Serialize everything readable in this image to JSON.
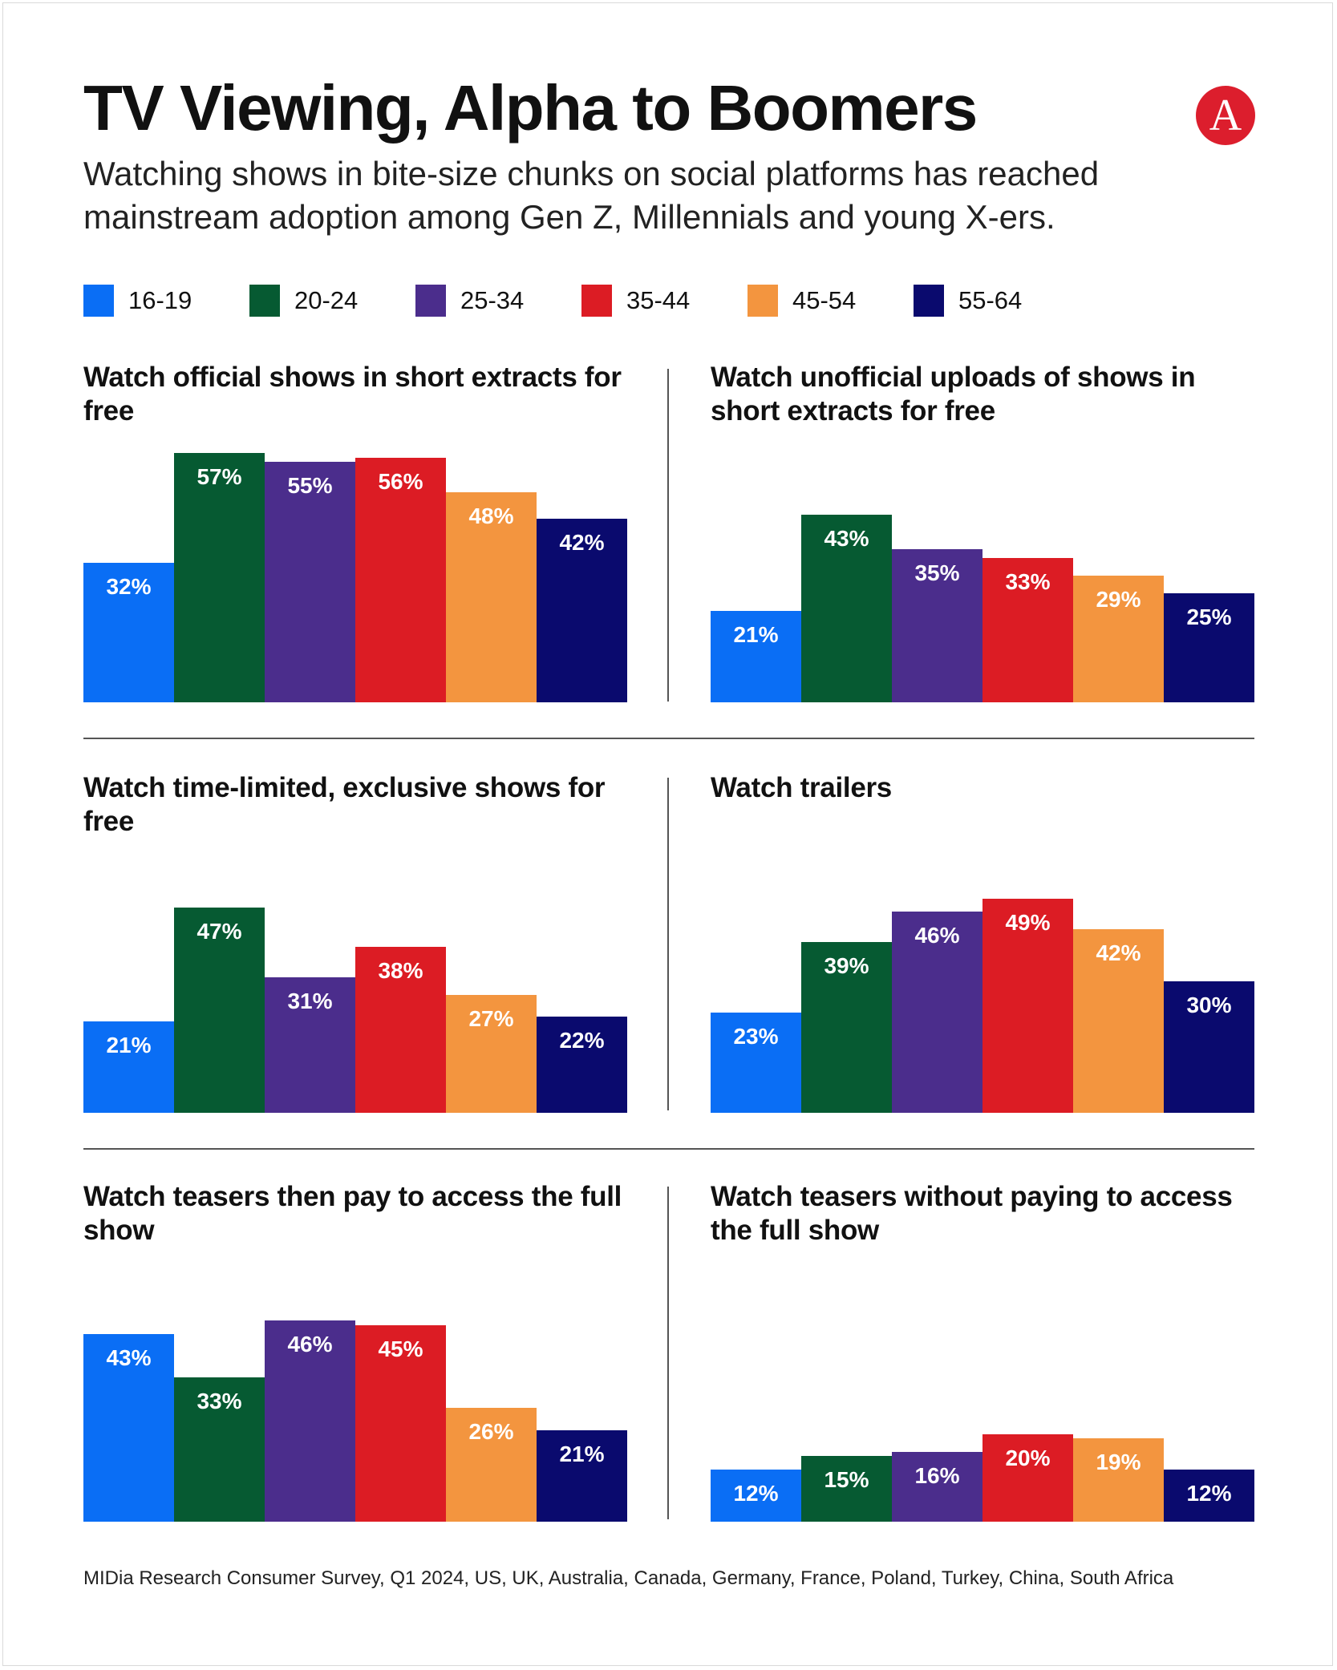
{
  "header": {
    "title": "TV Viewing, Alpha to Boomers",
    "subtitle": "Watching shows in bite-size chunks on social platforms has reached mainstream adoption among Gen Z, Millennials and young X-ers.",
    "logo_letter": "A",
    "logo_color": "#dc1e2d"
  },
  "legend": [
    {
      "label": "16-19",
      "color": "#0a6ef5"
    },
    {
      "label": "20-24",
      "color": "#065a32"
    },
    {
      "label": "25-34",
      "color": "#4b2d8c"
    },
    {
      "label": "35-44",
      "color": "#dc1c24"
    },
    {
      "label": "45-54",
      "color": "#f3953f"
    },
    {
      "label": "55-64",
      "color": "#0a0a6e"
    }
  ],
  "chart_data": [
    {
      "type": "bar",
      "title": "Watch official shows in short extracts for free",
      "categories": [
        "16-19",
        "20-24",
        "25-34",
        "35-44",
        "45-54",
        "55-64"
      ],
      "values": [
        32,
        57,
        55,
        56,
        48,
        42
      ],
      "unit": "%",
      "ylim": [
        0,
        60
      ]
    },
    {
      "type": "bar",
      "title": "Watch unofficial uploads of shows in short extracts for free",
      "categories": [
        "16-19",
        "20-24",
        "25-34",
        "35-44",
        "45-54",
        "55-64"
      ],
      "values": [
        21,
        43,
        35,
        33,
        29,
        25
      ],
      "unit": "%",
      "ylim": [
        0,
        60
      ]
    },
    {
      "type": "bar",
      "title": "Watch time-limited, exclusive shows for free",
      "categories": [
        "16-19",
        "20-24",
        "25-34",
        "35-44",
        "45-54",
        "55-64"
      ],
      "values": [
        21,
        47,
        31,
        38,
        27,
        22
      ],
      "unit": "%",
      "ylim": [
        0,
        60
      ]
    },
    {
      "type": "bar",
      "title": "Watch trailers",
      "categories": [
        "16-19",
        "20-24",
        "25-34",
        "35-44",
        "45-54",
        "55-64"
      ],
      "values": [
        23,
        39,
        46,
        49,
        42,
        30
      ],
      "unit": "%",
      "ylim": [
        0,
        60
      ]
    },
    {
      "type": "bar",
      "title": "Watch teasers then pay to access the full show",
      "categories": [
        "16-19",
        "20-24",
        "25-34",
        "35-44",
        "45-54",
        "55-64"
      ],
      "values": [
        43,
        33,
        46,
        45,
        26,
        21
      ],
      "unit": "%",
      "ylim": [
        0,
        60
      ]
    },
    {
      "type": "bar",
      "title": "Watch teasers without paying to access the full show",
      "categories": [
        "16-19",
        "20-24",
        "25-34",
        "35-44",
        "45-54",
        "55-64"
      ],
      "values": [
        12,
        15,
        16,
        20,
        19,
        12
      ],
      "unit": "%",
      "ylim": [
        0,
        60
      ]
    }
  ],
  "footer": {
    "source": "MIDia Research Consumer Survey, Q1 2024, US, UK, Australia, Canada, Germany, France, Poland, Turkey, China, South Africa"
  }
}
